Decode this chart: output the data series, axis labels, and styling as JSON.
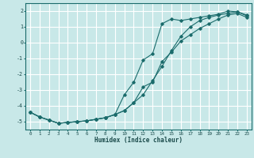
{
  "xlabel": "Humidex (Indice chaleur)",
  "background_color": "#c8e8e8",
  "grid_color": "#ffffff",
  "line_color": "#1a6b6b",
  "xlim": [
    -0.5,
    23.5
  ],
  "ylim": [
    -5.5,
    2.5
  ],
  "xticks": [
    0,
    1,
    2,
    3,
    4,
    5,
    6,
    7,
    8,
    9,
    10,
    11,
    12,
    13,
    14,
    15,
    16,
    17,
    18,
    19,
    20,
    21,
    22,
    23
  ],
  "yticks": [
    -5,
    -4,
    -3,
    -2,
    -1,
    0,
    1,
    2
  ],
  "line1_x": [
    0,
    1,
    2,
    3,
    4,
    5,
    6,
    7,
    8,
    9,
    10,
    11,
    12,
    13,
    14,
    15,
    16,
    17,
    18,
    19,
    20,
    21,
    22,
    23
  ],
  "line1_y": [
    -4.4,
    -4.7,
    -4.9,
    -5.1,
    -5.05,
    -5.0,
    -4.95,
    -4.85,
    -4.75,
    -4.55,
    -3.3,
    -2.5,
    -1.1,
    -0.7,
    1.2,
    1.5,
    1.4,
    1.5,
    1.6,
    1.7,
    1.8,
    2.0,
    1.95,
    1.7
  ],
  "line2_x": [
    0,
    1,
    2,
    3,
    4,
    5,
    6,
    7,
    8,
    9,
    10,
    11,
    12,
    13,
    14,
    15,
    16,
    17,
    18,
    19,
    20,
    21,
    22,
    23
  ],
  "line2_y": [
    -4.4,
    -4.7,
    -4.9,
    -5.1,
    -5.05,
    -5.0,
    -4.95,
    -4.85,
    -4.75,
    -4.55,
    -4.3,
    -3.8,
    -2.8,
    -2.5,
    -1.2,
    -0.6,
    0.1,
    0.5,
    0.9,
    1.2,
    1.5,
    1.75,
    1.85,
    1.6
  ],
  "line3_x": [
    0,
    1,
    2,
    3,
    4,
    5,
    6,
    7,
    8,
    9,
    10,
    11,
    12,
    13,
    14,
    15,
    16,
    17,
    18,
    19,
    20,
    21,
    22,
    23
  ],
  "line3_y": [
    -4.4,
    -4.7,
    -4.9,
    -5.1,
    -5.05,
    -5.0,
    -4.95,
    -4.85,
    -4.75,
    -4.55,
    -4.3,
    -3.8,
    -3.3,
    -2.4,
    -1.5,
    -0.5,
    0.4,
    1.0,
    1.4,
    1.6,
    1.75,
    1.85,
    1.95,
    1.75
  ]
}
